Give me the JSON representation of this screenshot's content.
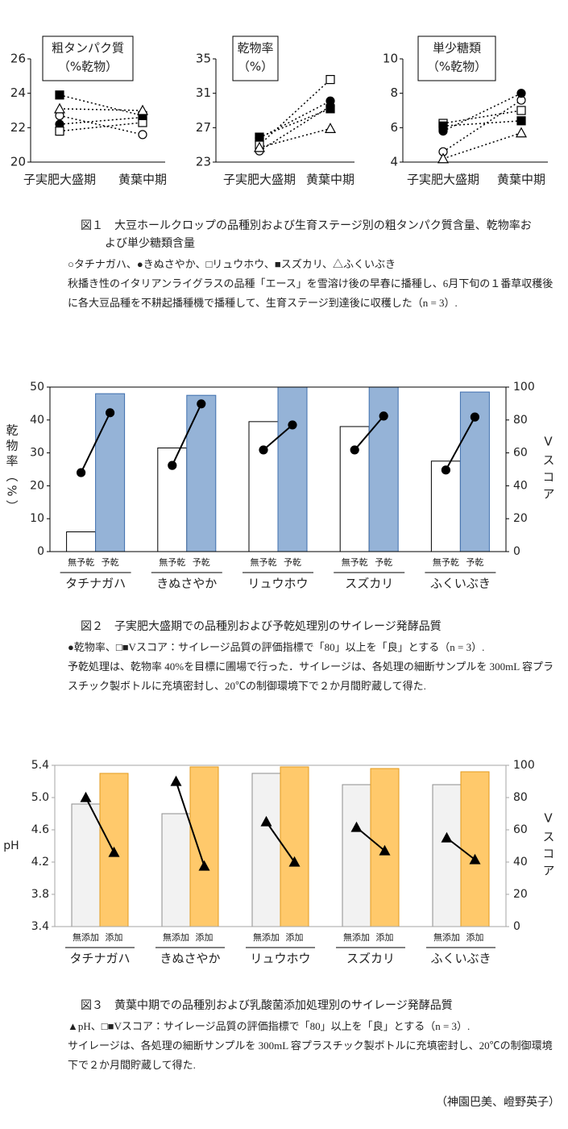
{
  "chart_data": [
    {
      "type": "line",
      "title": "粗タンパク質",
      "subtitle": "（%乾物）",
      "categories": [
        "子実肥大盛期",
        "黄葉中期"
      ],
      "ylim": [
        20,
        26
      ],
      "yticks": [
        20,
        22,
        24,
        26
      ],
      "series": [
        {
          "marker": "circle-open",
          "values": [
            22.7,
            21.6
          ]
        },
        {
          "marker": "circle",
          "values": [
            22.2,
            22.6
          ]
        },
        {
          "marker": "square-open",
          "values": [
            21.8,
            22.3
          ]
        },
        {
          "marker": "square",
          "values": [
            23.9,
            22.7
          ]
        },
        {
          "marker": "triangle-open",
          "values": [
            23.1,
            23.0
          ]
        }
      ]
    },
    {
      "type": "line",
      "title": "乾物率",
      "subtitle": "（%）",
      "categories": [
        "子実肥大盛期",
        "黄葉中期"
      ],
      "ylim": [
        23,
        35
      ],
      "yticks": [
        23,
        27,
        31,
        35
      ],
      "series": [
        {
          "marker": "circle-open",
          "values": [
            24.3,
            29.5
          ]
        },
        {
          "marker": "circle",
          "values": [
            25.8,
            30.1
          ]
        },
        {
          "marker": "square-open",
          "values": [
            25.0,
            32.6
          ]
        },
        {
          "marker": "square",
          "values": [
            25.9,
            29.2
          ]
        },
        {
          "marker": "triangle-open",
          "values": [
            24.7,
            26.9
          ]
        }
      ]
    },
    {
      "type": "line",
      "title": "単少糖類",
      "subtitle": "（%乾物）",
      "categories": [
        "子実肥大盛期",
        "黄葉中期"
      ],
      "ylim": [
        4,
        10
      ],
      "yticks": [
        4,
        6,
        8,
        10
      ],
      "series": [
        {
          "marker": "circle-open",
          "values": [
            4.6,
            7.6
          ]
        },
        {
          "marker": "circle",
          "values": [
            5.8,
            8.0
          ]
        },
        {
          "marker": "square-open",
          "values": [
            6.25,
            7.0
          ]
        },
        {
          "marker": "square",
          "values": [
            6.1,
            6.4
          ]
        },
        {
          "marker": "triangle-open",
          "values": [
            4.2,
            5.7
          ]
        }
      ]
    },
    {
      "type": "bar-line",
      "categories": [
        "タチナガハ",
        "きぬさやか",
        "リュウホウ",
        "スズカリ",
        "ふくいぶき"
      ],
      "ylabel": "乾物率（%）",
      "y2label": "Vスコア",
      "ylim": [
        0,
        50
      ],
      "yticks": [
        0,
        10,
        20,
        30,
        40,
        50
      ],
      "y2lim": [
        0,
        100
      ],
      "y2ticks": [
        0,
        20,
        40,
        60,
        80,
        100
      ],
      "frame_color": "#000000",
      "series": [
        {
          "type": "bar",
          "name": "無予乾",
          "color": "#ffffff",
          "edge_color": "#000000",
          "axis": "y2",
          "values": [
            12,
            63,
            79,
            76,
            55
          ]
        },
        {
          "type": "bar",
          "name": "予乾",
          "color": "#95b3d7",
          "edge_color": "#3f6fae",
          "axis": "y2",
          "values": [
            96,
            95,
            100,
            100,
            97
          ]
        },
        {
          "type": "line",
          "marker": "circle",
          "color": "#000000",
          "values": [
            [
              24.0,
              42.2
            ],
            [
              26.2,
              44.9
            ],
            [
              30.9,
              38.5
            ],
            [
              30.9,
              41.2
            ],
            [
              24.8,
              40.9
            ]
          ]
        }
      ]
    },
    {
      "type": "bar-line",
      "categories": [
        "タチナガハ",
        "きぬさやか",
        "リュウホウ",
        "スズカリ",
        "ふくいぶき"
      ],
      "ylabel": "pH",
      "y2label": "Vスコア",
      "ylim": [
        3.4,
        5.4
      ],
      "yticks": [
        3.4,
        3.8,
        4.2,
        4.6,
        {
          "value": 5,
          "label": "5.0"
        },
        5.4
      ],
      "y2lim": [
        0,
        100
      ],
      "y2ticks": [
        0,
        20,
        40,
        60,
        80,
        100
      ],
      "frame_color": "#a6a6a6",
      "series": [
        {
          "type": "bar",
          "name": "無添加",
          "color": "#f2f2f2",
          "edge_color": "#8c8c8c",
          "axis": "y2",
          "values": [
            76,
            70,
            95,
            88,
            88
          ]
        },
        {
          "type": "bar",
          "name": "添加",
          "color": "#ffc96b",
          "edge_color": "#e39a1c",
          "axis": "y2",
          "values": [
            95,
            99,
            99,
            98,
            96
          ]
        },
        {
          "type": "line",
          "marker": "triangle",
          "color": "#000000",
          "values": [
            [
              5.0,
              4.32
            ],
            [
              5.2,
              4.15
            ],
            [
              4.7,
              4.2
            ],
            [
              4.63,
              4.34
            ],
            [
              4.5,
              4.23
            ]
          ]
        }
      ]
    }
  ],
  "captions": [
    {
      "title": "図１　大豆ホールクロップの品種別および生育ステージ別の粗タンパク質含量、乾物率および単少糖類含量",
      "legend": "○タチナガハ、●きぬさやか、□リュウホウ、■スズカリ、△ふくいぶき",
      "note": "秋播き性のイタリアンライグラスの品種「エース」を雪溶け後の早春に播種し、6月下旬の１番草収穫後に各大豆品種を不耕起播種機で播種して、生育ステージ到達後に収穫した（n = 3）."
    },
    {
      "title": "図２　子実肥大盛期での品種別および予乾処理別のサイレージ発酵品質",
      "legend": "●乾物率、□■Vスコア：サイレージ品質の評価指標で「80」以上を「良」とする（n = 3）.",
      "note": "予乾処理は、乾物率 40%を目標に圃場で行った．サイレージは、各処理の細断サンプルを 300mL 容プラスチック製ボトルに充填密封し、20℃の制御環境下で２か月間貯蔵して得た."
    },
    {
      "title": "図３　黄葉中期での品種別および乳酸菌添加処理別のサイレージ発酵品質",
      "legend": "▲pH、□■Vスコア：サイレージ品質の評価指標で「80」以上を「良」とする（n = 3）.",
      "note": "サイレージは、各処理の細断サンプルを 300mL 容プラスチック製ボトルに充填密封し、20℃の制御環境下で２か月間貯蔵して得た."
    }
  ],
  "author": "（神園巴美、嶝野英子）"
}
